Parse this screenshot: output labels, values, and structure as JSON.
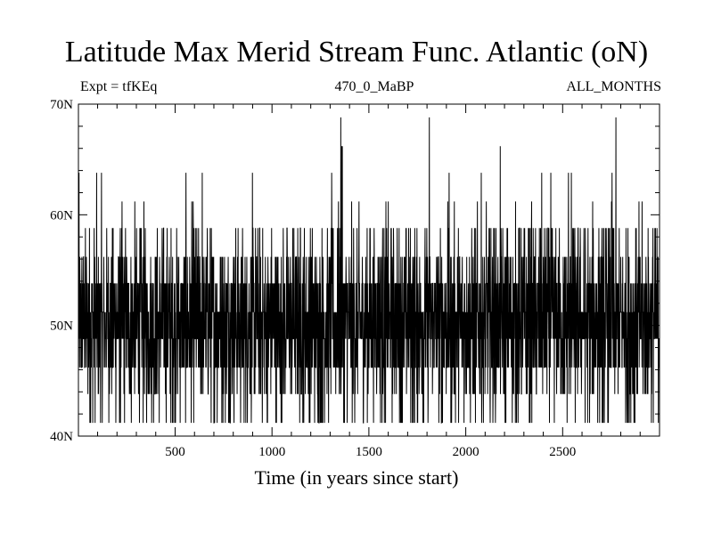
{
  "chart_data": {
    "type": "line",
    "title": "Latitude Max Merid Stream Func. Atlantic (oN)",
    "subtitle_left": "Expt = tfKEq",
    "subtitle_center": "470_0_MaBP",
    "subtitle_right": "ALL_MONTHS",
    "xlabel": "Time (in years since start)",
    "ylabel": "",
    "xlim": [
      1,
      3000
    ],
    "ylim": [
      40,
      70
    ],
    "x_ticks": [
      500,
      1000,
      1500,
      2000,
      2500
    ],
    "x_tick_labels": [
      "500",
      "1000",
      "1500",
      "2000",
      "2500"
    ],
    "y_ticks": [
      40,
      50,
      60,
      70
    ],
    "y_tick_labels": [
      "40N",
      "50N",
      "60N",
      "70N"
    ],
    "grid": false,
    "color": "#000000",
    "series": [
      {
        "levels_n": [
          41.2,
          43.8,
          46.2,
          48.8,
          51.2,
          53.8,
          56.2,
          58.8,
          61.2,
          63.8,
          66.2,
          68.8
        ],
        "level_weights": [
          3,
          4,
          11,
          15,
          15,
          12,
          5,
          3,
          0.6,
          0.25,
          0.05,
          0.02
        ],
        "peaks": [
          {
            "x": 640,
            "y": 63.8
          },
          {
            "x": 1355,
            "y": 68.8
          },
          {
            "x": 1360,
            "y": 66.2
          },
          {
            "x": 1812,
            "y": 68.8
          },
          {
            "x": 2530,
            "y": 63.8
          },
          {
            "x": 2545,
            "y": 63.8
          },
          {
            "x": 2755,
            "y": 63.8
          }
        ],
        "sample_count": 3000
      }
    ]
  }
}
